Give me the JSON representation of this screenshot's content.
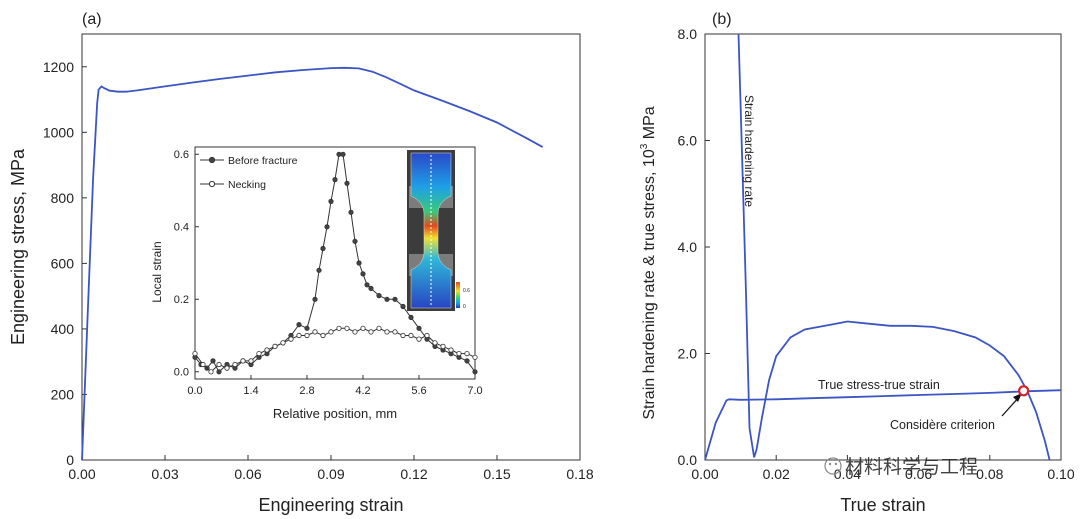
{
  "chart_data": [
    {
      "panel": "(a)",
      "type": "line",
      "xlabel": "Engineering strain",
      "ylabel": "Engineering stress, MPa",
      "xlim": [
        0,
        0.18
      ],
      "ylim": [
        0,
        1300
      ],
      "xticks": [
        "0.00",
        "0.03",
        "0.06",
        "0.09",
        "0.12",
        "0.15",
        "0.18"
      ],
      "xtick_values": [
        0,
        0.03,
        0.06,
        0.09,
        0.12,
        0.15,
        0.18
      ],
      "yticks": [
        "0",
        "200",
        "400",
        "600",
        "800",
        "1000",
        "1200"
      ],
      "ytick_values": [
        0,
        200,
        400,
        600,
        800,
        1000,
        1200
      ],
      "series": [
        {
          "name": "stress-strain",
          "color": "#3b55c4",
          "x": [
            0,
            0.002,
            0.004,
            0.0055,
            0.006,
            0.007,
            0.008,
            0.01,
            0.013,
            0.016,
            0.02,
            0.025,
            0.03,
            0.04,
            0.05,
            0.06,
            0.07,
            0.08,
            0.09,
            0.095,
            0.1,
            0.105,
            0.11,
            0.115,
            0.12,
            0.13,
            0.14,
            0.15,
            0.16,
            0.1665
          ],
          "y": [
            0,
            430,
            860,
            1090,
            1130,
            1140,
            1135,
            1127,
            1124,
            1124,
            1128,
            1134,
            1140,
            1152,
            1163,
            1173,
            1183,
            1190,
            1196,
            1197,
            1195,
            1185,
            1168,
            1148,
            1128,
            1097,
            1065,
            1030,
            985,
            955
          ]
        }
      ],
      "inset": {
        "type": "line",
        "xlabel": "Relative position, mm",
        "ylabel": "Local strain",
        "xlim": [
          0,
          7.0
        ],
        "ylim": [
          -0.02,
          0.62
        ],
        "xticks": [
          "0.0",
          "1.4",
          "2.8",
          "4.2",
          "5.6",
          "7.0"
        ],
        "xtick_values": [
          0,
          1.4,
          2.8,
          4.2,
          5.6,
          7.0
        ],
        "yticks": [
          "0.0",
          "0.2",
          "0.4",
          "0.6"
        ],
        "ytick_values": [
          0,
          0.2,
          0.4,
          0.6
        ],
        "series": [
          {
            "name": "Before fracture",
            "marker": "filled",
            "x": [
              0,
              0.15,
              0.3,
              0.45,
              0.6,
              0.8,
              1.0,
              1.2,
              1.4,
              1.6,
              1.8,
              2.0,
              2.2,
              2.4,
              2.6,
              2.8,
              3.0,
              3.1,
              3.2,
              3.3,
              3.4,
              3.5,
              3.6,
              3.7,
              3.8,
              3.9,
              4.0,
              4.1,
              4.2,
              4.3,
              4.4,
              4.6,
              4.8,
              5.0,
              5.2,
              5.4,
              5.6,
              5.8,
              6.0,
              6.2,
              6.4,
              6.6,
              6.8,
              7.0
            ],
            "y": [
              0.04,
              0.02,
              0.01,
              0.03,
              0.0,
              0.02,
              0.01,
              0.03,
              0.02,
              0.04,
              0.05,
              0.07,
              0.08,
              0.1,
              0.13,
              0.12,
              0.2,
              0.28,
              0.34,
              0.4,
              0.47,
              0.53,
              0.6,
              0.6,
              0.52,
              0.44,
              0.36,
              0.3,
              0.27,
              0.24,
              0.23,
              0.21,
              0.2,
              0.2,
              0.18,
              0.15,
              0.12,
              0.09,
              0.07,
              0.06,
              0.05,
              0.04,
              0.03,
              0.0
            ]
          },
          {
            "name": "Necking",
            "marker": "open",
            "x": [
              0,
              0.2,
              0.4,
              0.6,
              0.8,
              1.0,
              1.2,
              1.4,
              1.6,
              1.8,
              2.0,
              2.2,
              2.4,
              2.6,
              2.8,
              3.0,
              3.2,
              3.4,
              3.6,
              3.8,
              4.0,
              4.2,
              4.4,
              4.6,
              4.8,
              5.0,
              5.2,
              5.4,
              5.6,
              5.8,
              6.0,
              6.2,
              6.4,
              6.6,
              6.8,
              7.0
            ],
            "y": [
              0.05,
              0.02,
              0.0,
              0.02,
              0.01,
              0.02,
              0.03,
              0.03,
              0.05,
              0.06,
              0.07,
              0.08,
              0.09,
              0.1,
              0.1,
              0.11,
              0.1,
              0.11,
              0.12,
              0.12,
              0.11,
              0.12,
              0.11,
              0.12,
              0.11,
              0.11,
              0.1,
              0.1,
              0.09,
              0.1,
              0.08,
              0.07,
              0.06,
              0.05,
              0.05,
              0.04
            ]
          }
        ],
        "legend": [
          "Before fracture",
          "Necking"
        ],
        "legend_position": "top-left",
        "dic_image": {
          "description_label": "DIC strain map",
          "colorbar_labels": [
            "0.6",
            "0"
          ],
          "colorbar_symbol": "εxx",
          "colors": [
            "#1f3fbf",
            "#17a7e8",
            "#35d17a",
            "#f0e030",
            "#e34a1c"
          ]
        }
      }
    },
    {
      "panel": "(b)",
      "type": "line",
      "xlabel": "True strain",
      "ylabel_main": "Strain hardening rate & true stress, 10",
      "ylabel_sup": "3",
      "ylabel_unit": " MPa",
      "xlim": [
        0,
        0.1
      ],
      "ylim": [
        0,
        8.0
      ],
      "xticks": [
        "0.00",
        "0.02",
        "0.04",
        "0.06",
        "0.08",
        "0.10"
      ],
      "xtick_values": [
        0,
        0.02,
        0.04,
        0.06,
        0.08,
        0.1
      ],
      "yticks": [
        "0.0",
        "2.0",
        "4.0",
        "6.0",
        "8.0"
      ],
      "ytick_values": [
        0,
        2.0,
        4.0,
        6.0,
        8.0
      ],
      "series": [
        {
          "name": "Strain hardening rate",
          "color": "#3b55c4",
          "x": [
            0.0094,
            0.0105,
            0.0115,
            0.0125,
            0.0138,
            0.0145,
            0.016,
            0.018,
            0.02,
            0.024,
            0.028,
            0.032,
            0.036,
            0.04,
            0.046,
            0.052,
            0.058,
            0.064,
            0.07,
            0.076,
            0.08,
            0.084,
            0.088,
            0.0905,
            0.093,
            0.0955,
            0.0968
          ],
          "y": [
            8.0,
            5.5,
            3.2,
            0.6,
            0.05,
            0.2,
            0.8,
            1.5,
            1.95,
            2.3,
            2.45,
            2.5,
            2.55,
            2.6,
            2.56,
            2.52,
            2.52,
            2.5,
            2.42,
            2.3,
            2.15,
            1.95,
            1.6,
            1.3,
            0.9,
            0.35,
            0.0
          ]
        },
        {
          "name": "True stress-true strain",
          "color": "#3b55c4",
          "x": [
            0,
            0.003,
            0.006,
            0.0068,
            0.01,
            0.02,
            0.03,
            0.04,
            0.05,
            0.06,
            0.07,
            0.08,
            0.09,
            0.1
          ],
          "y": [
            0,
            0.7,
            1.12,
            1.14,
            1.13,
            1.14,
            1.16,
            1.18,
            1.2,
            1.22,
            1.24,
            1.26,
            1.29,
            1.31
          ]
        }
      ],
      "annotations": {
        "strain_hardening_label": "Strain hardening rate",
        "true_stress_label": "True stress-true strain",
        "criterion_label": "Considère criterion",
        "criterion_point": [
          0.0895,
          1.3
        ]
      }
    }
  ],
  "watermark": {
    "text": "材料科学与工程"
  }
}
